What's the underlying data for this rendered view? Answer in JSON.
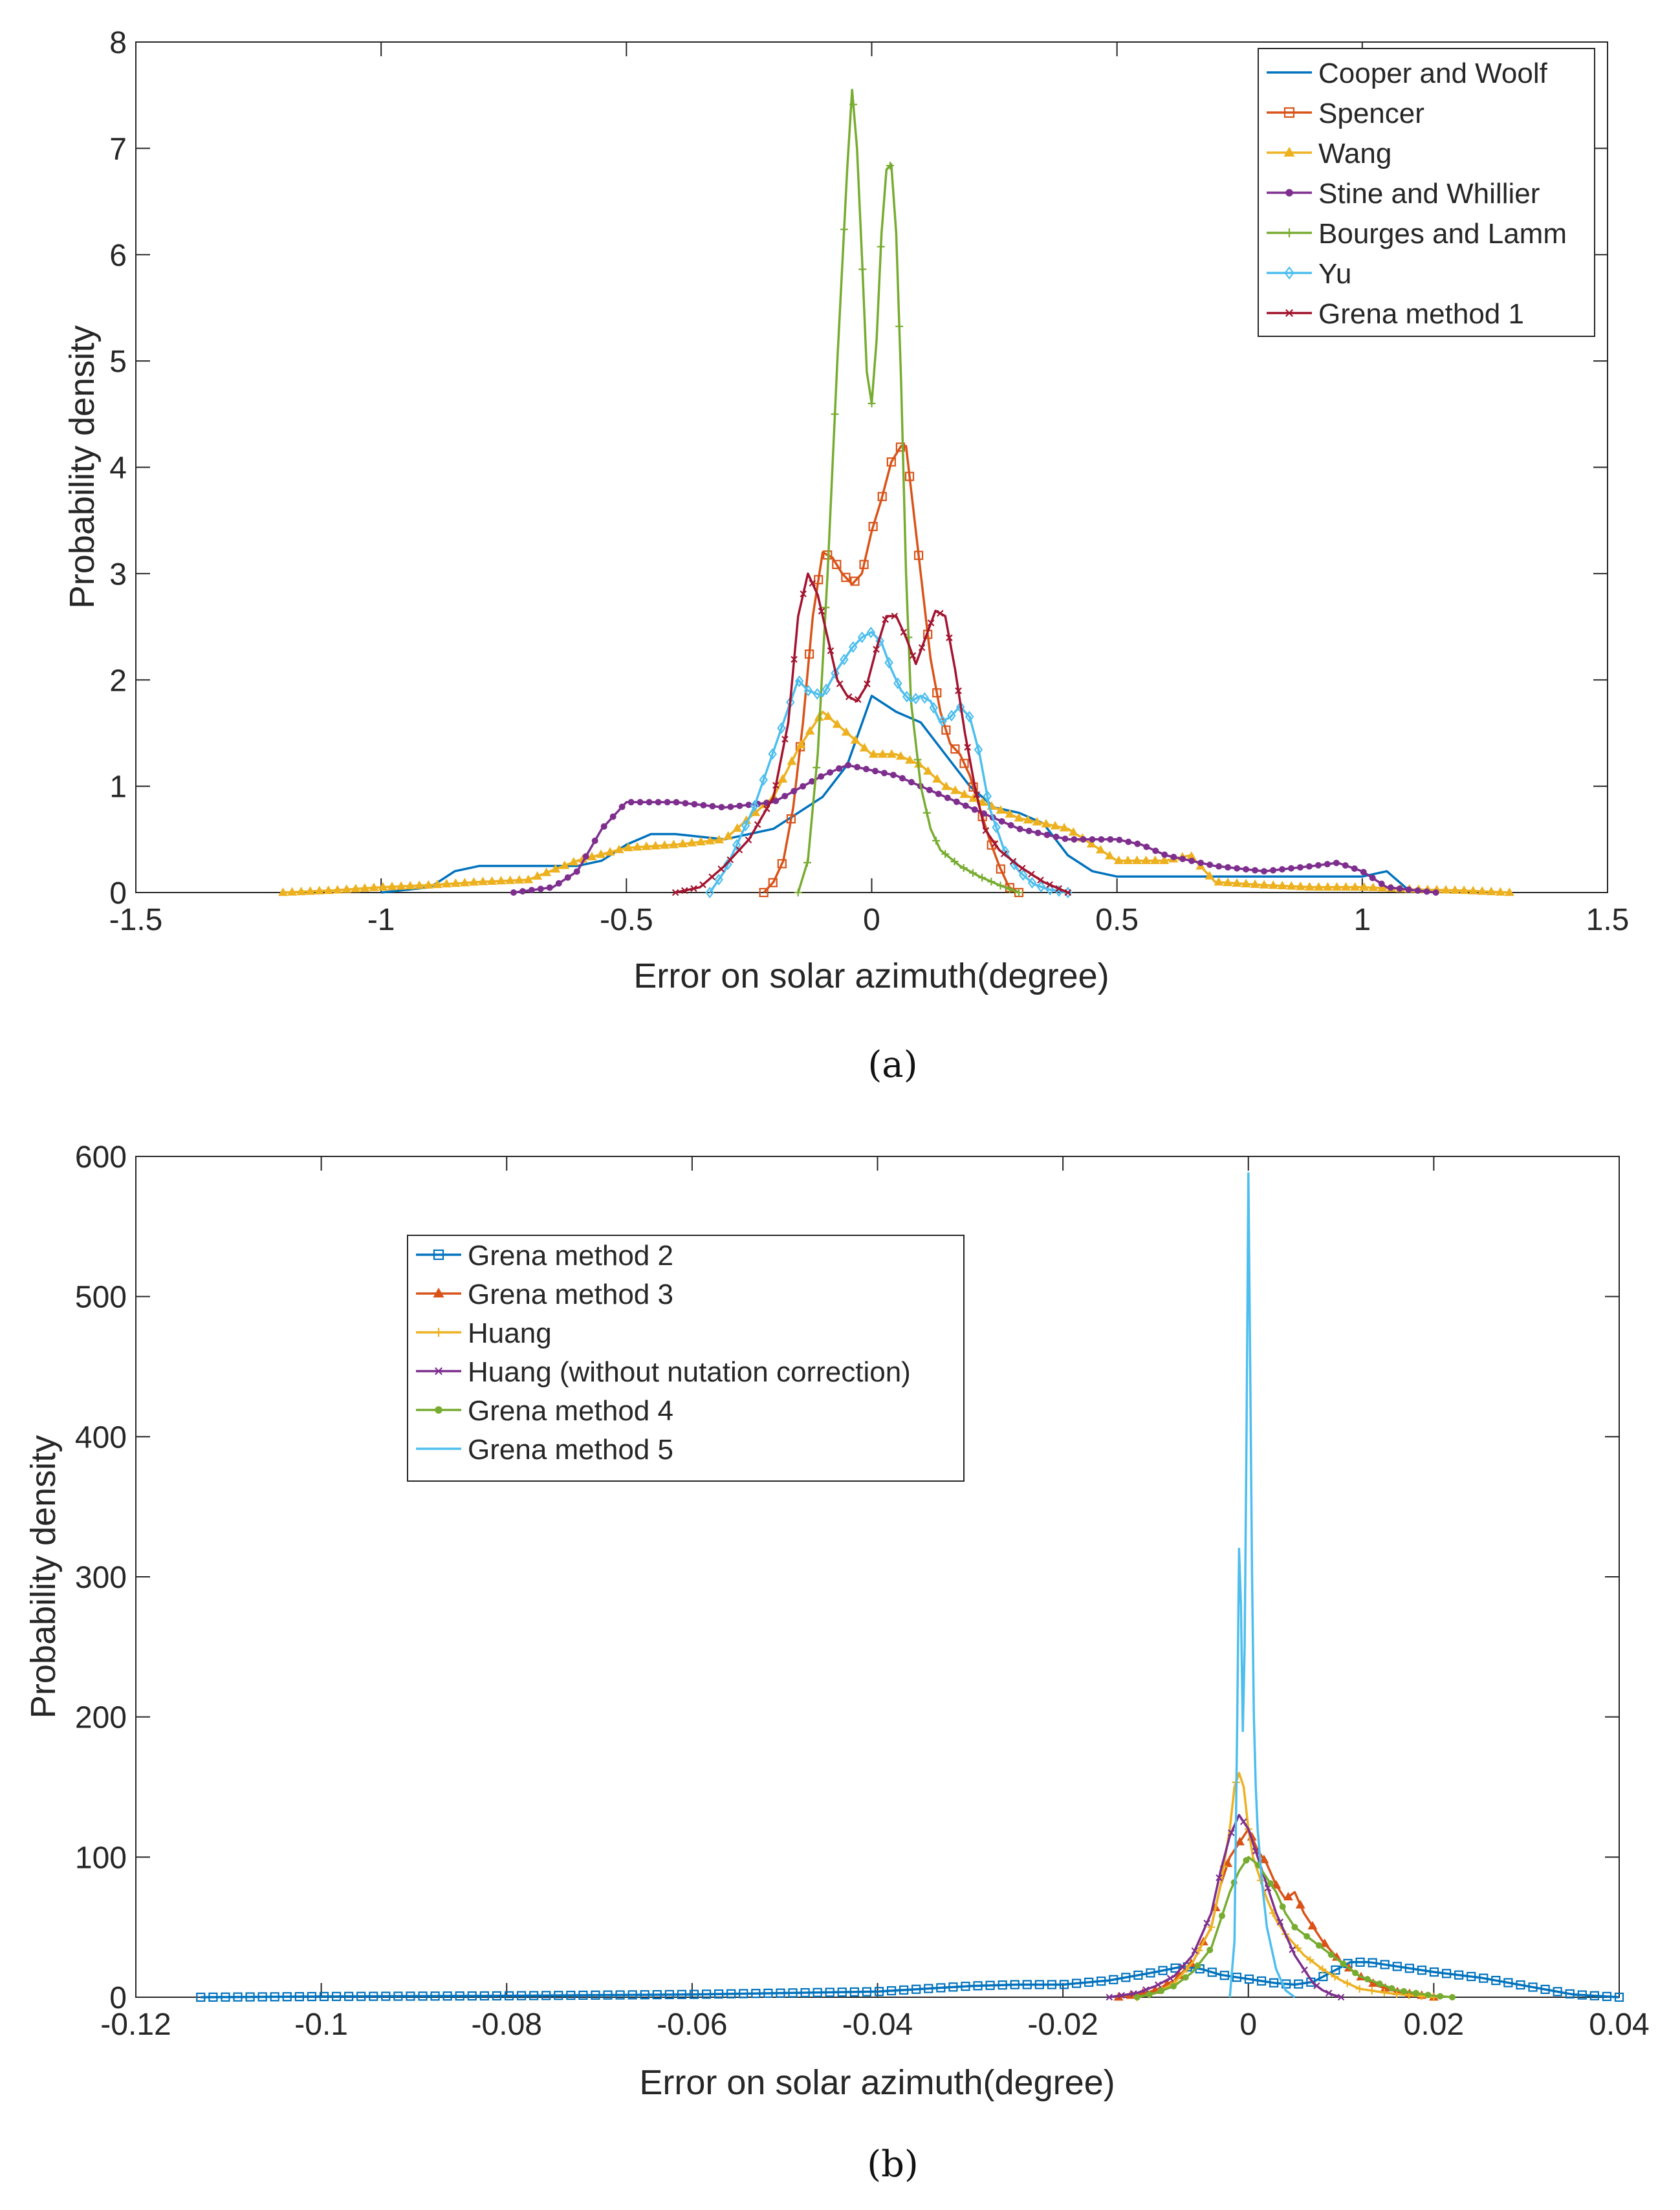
{
  "chart_data": [
    {
      "type": "line",
      "id": "a",
      "caption": "(a)",
      "xlabel": "Error on solar azimuth(degree)",
      "ylabel": "Probability density",
      "xlim": [
        -1.5,
        1.5
      ],
      "ylim": [
        0,
        8
      ],
      "xticks": [
        -1.5,
        -1,
        -0.5,
        0,
        0.5,
        1,
        1.5
      ],
      "xtick_labels": [
        "-1.5",
        "-1",
        "-0.5",
        "0",
        "0.5",
        "1",
        "1.5"
      ],
      "yticks": [
        0,
        1,
        2,
        3,
        4,
        5,
        6,
        7,
        8
      ],
      "ytick_labels": [
        "0",
        "1",
        "2",
        "3",
        "4",
        "5",
        "6",
        "7",
        "8"
      ],
      "legend_position": "top-right",
      "series": [
        {
          "name": "Cooper and Woolf",
          "color": "#0072BD",
          "marker": "none",
          "x": [
            -1.0,
            -0.9,
            -0.85,
            -0.8,
            -0.7,
            -0.6,
            -0.55,
            -0.5,
            -0.45,
            -0.4,
            -0.3,
            -0.2,
            -0.1,
            -0.05,
            0.0,
            0.05,
            0.1,
            0.15,
            0.2,
            0.25,
            0.3,
            0.35,
            0.4,
            0.45,
            0.5,
            0.6,
            0.7,
            0.8,
            0.9,
            1.0,
            1.05,
            1.1
          ],
          "y": [
            0,
            0.05,
            0.2,
            0.25,
            0.25,
            0.25,
            0.3,
            0.45,
            0.55,
            0.55,
            0.5,
            0.6,
            0.9,
            1.2,
            1.85,
            1.7,
            1.6,
            1.3,
            1.0,
            0.8,
            0.75,
            0.65,
            0.35,
            0.2,
            0.15,
            0.15,
            0.15,
            0.15,
            0.15,
            0.15,
            0.2,
            0.0
          ]
        },
        {
          "name": "Spencer",
          "color": "#D95319",
          "marker": "square",
          "x": [
            -0.22,
            -0.2,
            -0.18,
            -0.16,
            -0.14,
            -0.12,
            -0.1,
            -0.08,
            -0.06,
            -0.04,
            -0.02,
            0.0,
            0.02,
            0.04,
            0.06,
            0.07,
            0.08,
            0.1,
            0.12,
            0.14,
            0.16,
            0.18,
            0.2,
            0.22,
            0.24,
            0.26,
            0.28,
            0.3
          ],
          "y": [
            0,
            0.1,
            0.3,
            0.8,
            1.6,
            2.6,
            3.2,
            3.15,
            3.0,
            2.9,
            3.0,
            3.4,
            3.7,
            4.05,
            4.2,
            4.2,
            3.8,
            3.0,
            2.2,
            1.7,
            1.4,
            1.3,
            1.1,
            0.8,
            0.5,
            0.25,
            0.05,
            0
          ]
        },
        {
          "name": "Wang",
          "color": "#EDB120",
          "marker": "triangle",
          "x": [
            -1.2,
            -1.1,
            -1.0,
            -0.9,
            -0.8,
            -0.7,
            -0.6,
            -0.5,
            -0.4,
            -0.3,
            -0.2,
            -0.15,
            -0.1,
            -0.05,
            0.0,
            0.05,
            0.1,
            0.15,
            0.2,
            0.25,
            0.3,
            0.4,
            0.5,
            0.6,
            0.65,
            0.7,
            0.8,
            0.9,
            1.0,
            1.1,
            1.2,
            1.3
          ],
          "y": [
            0,
            0.02,
            0.05,
            0.07,
            0.1,
            0.12,
            0.3,
            0.42,
            0.45,
            0.5,
            0.9,
            1.35,
            1.7,
            1.5,
            1.3,
            1.3,
            1.2,
            1.0,
            0.9,
            0.8,
            0.7,
            0.6,
            0.3,
            0.3,
            0.35,
            0.1,
            0.07,
            0.05,
            0.05,
            0.03,
            0.02,
            0
          ]
        },
        {
          "name": "Stine and Whillier",
          "color": "#7E2F8E",
          "marker": "circle",
          "x": [
            -0.73,
            -0.65,
            -0.6,
            -0.55,
            -0.5,
            -0.45,
            -0.4,
            -0.3,
            -0.2,
            -0.1,
            -0.05,
            0.0,
            0.05,
            0.1,
            0.2,
            0.3,
            0.4,
            0.5,
            0.55,
            0.6,
            0.7,
            0.8,
            0.9,
            0.95,
            1.0,
            1.05,
            1.15
          ],
          "y": [
            0,
            0.05,
            0.2,
            0.6,
            0.85,
            0.85,
            0.85,
            0.8,
            0.85,
            1.1,
            1.2,
            1.15,
            1.1,
            1.0,
            0.8,
            0.6,
            0.5,
            0.5,
            0.45,
            0.35,
            0.25,
            0.2,
            0.25,
            0.28,
            0.2,
            0.05,
            0
          ]
        },
        {
          "name": "Bourges and Lamm",
          "color": "#77AC30",
          "marker": "plus",
          "x": [
            -0.15,
            -0.13,
            -0.11,
            -0.09,
            -0.07,
            -0.05,
            -0.04,
            -0.03,
            -0.02,
            -0.01,
            0.0,
            0.01,
            0.02,
            0.03,
            0.04,
            0.05,
            0.06,
            0.07,
            0.08,
            0.1,
            0.12,
            0.14,
            0.18,
            0.22,
            0.26,
            0.3
          ],
          "y": [
            0,
            0.3,
            1.3,
            3.0,
            5.0,
            6.8,
            7.55,
            7.0,
            6.0,
            4.9,
            4.6,
            5.2,
            6.2,
            6.8,
            6.85,
            6.2,
            4.8,
            3.0,
            1.8,
            1.0,
            0.6,
            0.4,
            0.25,
            0.15,
            0.07,
            0
          ]
        },
        {
          "name": "Yu",
          "color": "#4DBEEE",
          "marker": "diamond",
          "x": [
            -0.33,
            -0.3,
            -0.27,
            -0.24,
            -0.21,
            -0.18,
            -0.15,
            -0.13,
            -0.1,
            -0.07,
            -0.04,
            -0.02,
            0.0,
            0.02,
            0.04,
            0.06,
            0.08,
            0.1,
            0.12,
            0.14,
            0.16,
            0.18,
            0.2,
            0.22,
            0.24,
            0.27,
            0.3,
            0.33,
            0.36,
            0.4
          ],
          "y": [
            0,
            0.2,
            0.5,
            0.8,
            1.2,
            1.6,
            2.0,
            1.9,
            1.85,
            2.1,
            2.3,
            2.4,
            2.45,
            2.35,
            2.1,
            1.9,
            1.8,
            1.85,
            1.8,
            1.6,
            1.65,
            1.75,
            1.65,
            1.3,
            0.8,
            0.4,
            0.2,
            0.08,
            0.03,
            0
          ]
        },
        {
          "name": "Grena method 1",
          "color": "#A2142F",
          "marker": "cross",
          "x": [
            -0.4,
            -0.35,
            -0.3,
            -0.25,
            -0.2,
            -0.17,
            -0.15,
            -0.13,
            -0.11,
            -0.09,
            -0.07,
            -0.05,
            -0.03,
            -0.01,
            0.01,
            0.03,
            0.05,
            0.07,
            0.09,
            0.11,
            0.13,
            0.15,
            0.17,
            0.19,
            0.21,
            0.23,
            0.26,
            0.3,
            0.35,
            0.4
          ],
          "y": [
            0,
            0.05,
            0.25,
            0.5,
            0.9,
            1.6,
            2.6,
            3.0,
            2.8,
            2.4,
            2.0,
            1.85,
            1.8,
            1.95,
            2.3,
            2.6,
            2.6,
            2.4,
            2.15,
            2.4,
            2.65,
            2.6,
            2.1,
            1.5,
            1.0,
            0.6,
            0.4,
            0.25,
            0.1,
            0
          ]
        }
      ]
    },
    {
      "type": "line",
      "id": "b",
      "caption": "(b)",
      "xlabel": "Error on solar azimuth(degree)",
      "ylabel": "Probability density",
      "xlim": [
        -0.12,
        0.04
      ],
      "ylim": [
        0,
        600
      ],
      "xticks": [
        -0.12,
        -0.1,
        -0.08,
        -0.06,
        -0.04,
        -0.02,
        0,
        0.02,
        0.04
      ],
      "xtick_labels": [
        "-0.12",
        "-0.1",
        "-0.08",
        "-0.06",
        "-0.04",
        "-0.02",
        "0",
        "0.02",
        "0.04"
      ],
      "yticks": [
        0,
        100,
        200,
        300,
        400,
        500,
        600
      ],
      "ytick_labels": [
        "0",
        "100",
        "200",
        "300",
        "400",
        "500",
        "600"
      ],
      "legend_position": "top-left",
      "series": [
        {
          "name": "Grena method 2",
          "color": "#0072BD",
          "marker": "square",
          "x": [
            -0.113,
            -0.1,
            -0.08,
            -0.06,
            -0.05,
            -0.04,
            -0.035,
            -0.03,
            -0.025,
            -0.02,
            -0.015,
            -0.01,
            -0.007,
            -0.005,
            -0.003,
            -0.001,
            0.0,
            0.001,
            0.003,
            0.005,
            0.007,
            0.009,
            0.011,
            0.013,
            0.016,
            0.02,
            0.025,
            0.03,
            0.035,
            0.04
          ],
          "y": [
            0,
            0.5,
            1,
            2,
            3,
            4,
            6,
            8,
            9,
            9,
            12,
            18,
            22,
            20,
            16,
            14,
            13,
            12,
            10,
            9,
            11,
            18,
            25,
            25,
            22,
            18,
            14,
            8,
            2,
            0
          ]
        },
        {
          "name": "Grena method 3",
          "color": "#D95319",
          "marker": "triangle",
          "x": [
            -0.014,
            -0.012,
            -0.01,
            -0.008,
            -0.006,
            -0.004,
            -0.003,
            -0.002,
            -0.001,
            0.0,
            0.001,
            0.002,
            0.003,
            0.004,
            0.005,
            0.006,
            0.008,
            0.01,
            0.012,
            0.014,
            0.016,
            0.018,
            0.02
          ],
          "y": [
            0,
            2,
            5,
            12,
            25,
            50,
            80,
            100,
            110,
            120,
            105,
            95,
            80,
            70,
            75,
            60,
            40,
            25,
            15,
            8,
            4,
            2,
            0
          ]
        },
        {
          "name": "Huang",
          "color": "#EDB120",
          "marker": "plus",
          "x": [
            -0.012,
            -0.01,
            -0.008,
            -0.006,
            -0.004,
            -0.003,
            -0.002,
            -0.0015,
            -0.001,
            -0.0005,
            0.0,
            0.0005,
            0.001,
            0.002,
            0.003,
            0.004,
            0.006,
            0.008,
            0.01,
            0.012,
            0.015,
            0.018,
            0.02
          ],
          "y": [
            0,
            3,
            10,
            25,
            50,
            80,
            120,
            150,
            160,
            150,
            120,
            100,
            90,
            70,
            55,
            45,
            30,
            20,
            12,
            6,
            3,
            1,
            0
          ]
        },
        {
          "name": "Huang (without nutation correction)",
          "color": "#7E2F8E",
          "marker": "cross",
          "x": [
            -0.015,
            -0.012,
            -0.01,
            -0.008,
            -0.006,
            -0.004,
            -0.003,
            -0.002,
            -0.001,
            0.0,
            0.001,
            0.002,
            0.003,
            0.004,
            0.005,
            0.006,
            0.007,
            0.008,
            0.009,
            0.01
          ],
          "y": [
            0,
            3,
            8,
            15,
            30,
            60,
            90,
            115,
            130,
            120,
            100,
            80,
            60,
            45,
            30,
            20,
            10,
            5,
            2,
            0
          ]
        },
        {
          "name": "Grena method 4",
          "color": "#77AC30",
          "marker": "circle",
          "x": [
            -0.012,
            -0.01,
            -0.008,
            -0.006,
            -0.004,
            -0.003,
            -0.002,
            -0.001,
            0.0,
            0.001,
            0.002,
            0.003,
            0.004,
            0.005,
            0.006,
            0.008,
            0.01,
            0.012,
            0.014,
            0.016,
            0.018,
            0.02,
            0.022
          ],
          "y": [
            0,
            3,
            8,
            18,
            35,
            55,
            75,
            90,
            100,
            95,
            85,
            75,
            60,
            50,
            45,
            35,
            25,
            15,
            10,
            5,
            3,
            1,
            0
          ]
        },
        {
          "name": "Grena method 5",
          "color": "#4DBEEE",
          "marker": "none",
          "x": [
            -0.002,
            -0.0015,
            -0.0012,
            -0.001,
            -0.0008,
            -0.0006,
            -0.0004,
            -0.0002,
            0.0,
            0.0002,
            0.0004,
            0.0006,
            0.0008,
            0.001,
            0.0015,
            0.002,
            0.003,
            0.004,
            0.005
          ],
          "y": [
            0,
            40,
            200,
            320,
            280,
            190,
            250,
            400,
            588,
            450,
            300,
            200,
            150,
            120,
            80,
            50,
            20,
            5,
            0
          ]
        }
      ]
    }
  ]
}
